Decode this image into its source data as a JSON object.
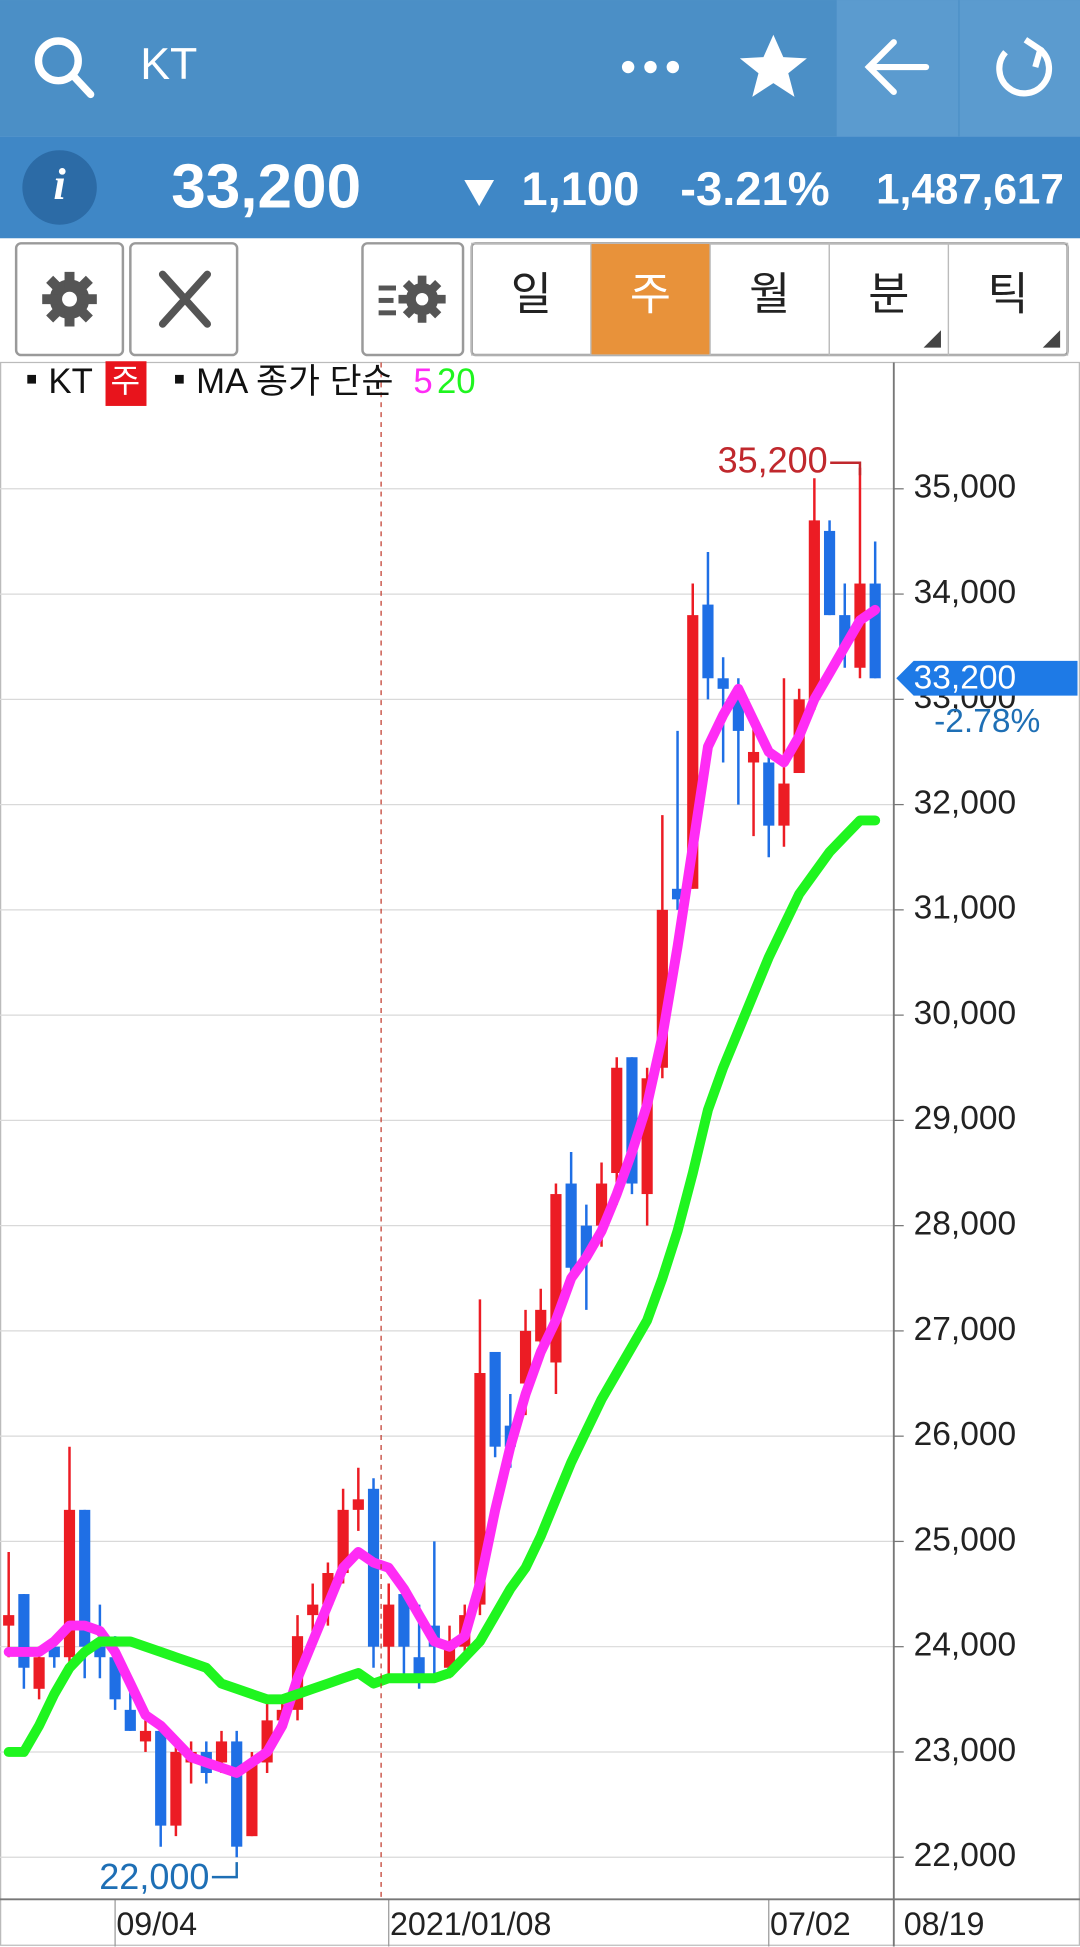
{
  "header": {
    "search": "KT",
    "price": "33,200",
    "change": "1,100",
    "change_pct": "-3.21%",
    "volume": "1,487,617"
  },
  "tabs": [
    "일",
    "주",
    "월",
    "분",
    "틱"
  ],
  "selected_tab": 1,
  "legend": {
    "symbol": "KT",
    "period": "주",
    "ma_label": "MA 종가 단순"
  },
  "chart_data": {
    "type": "candlestick",
    "categories": [
      null,
      null,
      null,
      null,
      null,
      null,
      null,
      "09/04",
      null,
      null,
      null,
      null,
      null,
      null,
      null,
      null,
      null,
      null,
      null,
      null,
      null,
      null,
      null,
      null,
      null,
      "2021/01/08",
      null,
      null,
      null,
      null,
      null,
      null,
      null,
      null,
      null,
      null,
      null,
      null,
      null,
      null,
      null,
      null,
      null,
      null,
      null,
      null,
      null,
      null,
      null,
      null,
      "07/02",
      null,
      null,
      null,
      null,
      null,
      null,
      null
    ],
    "current_date": "08/19",
    "candles": {
      "up_color": "#ec1c24",
      "down_color": "#1f6fe5",
      "open": [
        24200,
        24500,
        23600,
        24000,
        23900,
        25300,
        24000,
        23900,
        23400,
        23100,
        23200,
        22300,
        22900,
        23000,
        22900,
        23100,
        22200,
        22900,
        23300,
        23400,
        24300,
        24400,
        24700,
        25300,
        25500,
        24000,
        24500,
        23900,
        24200,
        23800,
        24000,
        24400,
        26800,
        26100,
        26500,
        26900,
        26700,
        28400,
        28000,
        28000,
        28500,
        29600,
        28300,
        29500,
        31200,
        31200,
        33900,
        33200,
        33000,
        32400,
        32400,
        31800,
        32300,
        33000,
        34600,
        33800,
        33300,
        34100
      ],
      "high": [
        24900,
        24500,
        24000,
        24100,
        25900,
        25300,
        24400,
        24100,
        23700,
        23300,
        23200,
        23100,
        23100,
        23100,
        23200,
        23200,
        23000,
        23500,
        23500,
        24300,
        24600,
        24800,
        25500,
        25700,
        25600,
        24600,
        24600,
        24400,
        25000,
        24200,
        24400,
        27300,
        26800,
        26400,
        27200,
        27400,
        28400,
        28700,
        28200,
        28600,
        29600,
        29600,
        29500,
        31900,
        32700,
        34100,
        34400,
        33400,
        33200,
        32800,
        32500,
        33200,
        33100,
        35100,
        34700,
        34100,
        35200,
        34500
      ],
      "low": [
        23900,
        23600,
        23500,
        23800,
        23800,
        23700,
        23700,
        23400,
        23200,
        23000,
        22100,
        22200,
        22700,
        22700,
        22800,
        22000,
        22200,
        22800,
        23200,
        23300,
        24000,
        24200,
        24600,
        25100,
        23800,
        23700,
        23700,
        23600,
        23700,
        23700,
        23900,
        24300,
        25800,
        25700,
        26200,
        26700,
        26400,
        27500,
        27200,
        27800,
        28200,
        28300,
        28000,
        29400,
        31000,
        31200,
        33000,
        32400,
        32000,
        31700,
        31500,
        31600,
        32300,
        32900,
        33800,
        33300,
        33200,
        33200
      ],
      "close": [
        24300,
        23800,
        23900,
        23900,
        25300,
        24000,
        23900,
        23500,
        23200,
        23200,
        22300,
        23000,
        23000,
        22800,
        23100,
        22100,
        22900,
        23300,
        23400,
        24100,
        24400,
        24700,
        25300,
        25400,
        24000,
        24400,
        24000,
        23700,
        24000,
        24000,
        24300,
        26600,
        25900,
        25900,
        27000,
        27200,
        28300,
        27600,
        27700,
        28400,
        29500,
        28400,
        29400,
        31000,
        31100,
        33800,
        33200,
        33100,
        32700,
        32500,
        31800,
        32200,
        33000,
        34700,
        33800,
        33500,
        34100,
        33200
      ]
    },
    "series": [
      {
        "name": "5",
        "color": "#ff2cf5",
        "values": [
          23950,
          23950,
          23950,
          24050,
          24200,
          24200,
          24150,
          23950,
          23650,
          23350,
          23250,
          23100,
          22950,
          22900,
          22850,
          22800,
          22900,
          23000,
          23250,
          23700,
          24050,
          24400,
          24750,
          24900,
          24800,
          24750,
          24550,
          24300,
          24050,
          24000,
          24100,
          24600,
          25300,
          25900,
          26400,
          26800,
          27100,
          27500,
          27700,
          27950,
          28300,
          28700,
          29150,
          29800,
          30650,
          31600,
          32550,
          32850,
          33100,
          32800,
          32500,
          32400,
          32650,
          33000,
          33250,
          33500,
          33750,
          33850
        ]
      },
      {
        "name": "20",
        "color": "#1ff51f",
        "values": [
          23000,
          23000,
          23250,
          23550,
          23800,
          23950,
          24050,
          24050,
          24050,
          24000,
          23950,
          23900,
          23850,
          23800,
          23650,
          23600,
          23550,
          23500,
          23500,
          23550,
          23600,
          23650,
          23700,
          23750,
          23650,
          23700,
          23700,
          23700,
          23700,
          23750,
          23900,
          24050,
          24300,
          24550,
          24750,
          25050,
          25400,
          25750,
          26050,
          26350,
          26600,
          26850,
          27100,
          27500,
          27950,
          28500,
          29100,
          29500,
          29850,
          30200,
          30550,
          30850,
          31150,
          31350,
          31550,
          31700,
          31850,
          31850
        ]
      }
    ],
    "ylim": [
      21600,
      36200
    ],
    "yticks": [
      {
        "value": 22000,
        "label": "22,000"
      },
      {
        "value": 23000,
        "label": "23,000"
      },
      {
        "value": 24000,
        "label": "24,000"
      },
      {
        "value": 25000,
        "label": "25,000"
      },
      {
        "value": 26000,
        "label": "26,000"
      },
      {
        "value": 27000,
        "label": "27,000"
      },
      {
        "value": 28000,
        "label": "28,000"
      },
      {
        "value": 29000,
        "label": "29,000"
      },
      {
        "value": 30000,
        "label": "30,000"
      },
      {
        "value": 31000,
        "label": "31,000"
      },
      {
        "value": 32000,
        "label": "32,000"
      },
      {
        "value": 33000,
        "label": "33,000"
      },
      {
        "value": 34000,
        "label": "34,000"
      },
      {
        "value": 35000,
        "label": "35,000"
      }
    ],
    "grid": true,
    "high_label": "35,200",
    "low_label": "22,000",
    "last_label": "33,200",
    "last_change": "-2.78%"
  }
}
